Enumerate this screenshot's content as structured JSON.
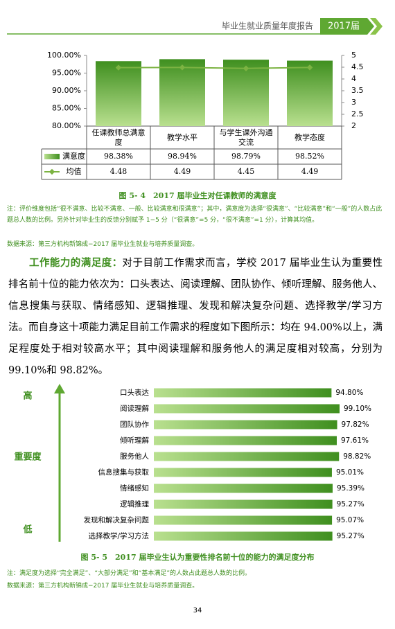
{
  "header": {
    "title": "毕业生就业质量年度报告",
    "badge": "2017届"
  },
  "chart_data": [
    {
      "type": "bar_line_table",
      "categories": [
        "任课教师总满意度",
        "教学水平",
        "与学生课外沟通交流",
        "教学态度"
      ],
      "series": [
        {
          "name": "满意度",
          "color": "#5fa832",
          "values": [
            98.38,
            98.94,
            98.79,
            98.52
          ],
          "value_labels": [
            "98.38%",
            "98.94%",
            "98.79%",
            "98.52%"
          ]
        },
        {
          "name": "均值",
          "color": "#7cb342",
          "axis": "y2",
          "values": [
            4.48,
            4.49,
            4.45,
            4.49
          ]
        }
      ],
      "ylim": [
        80,
        100
      ],
      "yticks": [
        {
          "value": 80,
          "label": "80.00%"
        },
        {
          "value": 85,
          "label": "85.00%"
        },
        {
          "value": 90,
          "label": "90.00%"
        },
        {
          "value": 95,
          "label": "95.00%"
        },
        {
          "value": 100,
          "label": "100.00%"
        }
      ],
      "y2lim": [
        2,
        5
      ],
      "y2ticks": [
        2,
        2.5,
        3,
        3.5,
        4,
        4.5,
        5
      ]
    },
    {
      "type": "hbar",
      "categories": [
        "口头表达",
        "阅读理解",
        "团队协作",
        "倾听理解",
        "服务他人",
        "信息搜集与获取",
        "情绪感知",
        "逻辑推理",
        "发现和解决复杂问题",
        "选择教学/学习方法"
      ],
      "values": [
        94.8,
        99.1,
        97.82,
        97.61,
        98.82,
        95.01,
        95.39,
        95.27,
        95.07,
        95.27
      ],
      "value_labels": [
        "94.80%",
        "99.10%",
        "97.82%",
        "97.61%",
        "98.82%",
        "95.01%",
        "95.39%",
        "95.27%",
        "95.07%",
        "95.27%"
      ],
      "color": "#5fa832",
      "axis_labels": {
        "high": "高",
        "middle": "重要度",
        "low": "低"
      }
    }
  ],
  "figure1": {
    "caption": "图 5- 4　2017 届毕业生对任课教师的满意度",
    "note": "注：评价维度包括“很不满意、比较不满意、一般、比较满意和很满意”；其中，满意度为选择“很满意”、“比较满意”和“一般”的人数占此题总人数的比例。另外针对毕业生的反馈分别赋予 1−5 分（“很满意”=5 分，“很不满意”=1 分），计算其均值。",
    "source": "数据来源：第三方机构新锦成−2017 届毕业生就业与培养质量调查。"
  },
  "paragraph": {
    "lead": "工作能力的满足度：",
    "text": "对于目前工作需求而言，学校 2017 届毕业生认为重要性排名前十位的能力依次为：口头表达、阅读理解、团队协作、倾听理解、服务他人、信息搜集与获取、情绪感知、逻辑推理、发现和解决复杂问题、选择教学/学习方法。而自身这十项能力满足目前工作需求的程度如下图所示：均在 94.00%以上，满足程度处于相对较高水平；其中阅读理解和服务他人的满足度相对较高，分别为 99.10%和 98.82%。"
  },
  "figure2": {
    "caption": "图 5- 5　2017 届毕业生认为重要性排名前十位的能力的满足度分布",
    "note": "注：满足度为选择“完全满足”、“大部分满足”和“基本满足”的人数占此题总人数的比例。",
    "source": "数据来源：第三方机构新锦成−2017 届毕业生就业与培养质量调查。"
  },
  "page_number": "34"
}
